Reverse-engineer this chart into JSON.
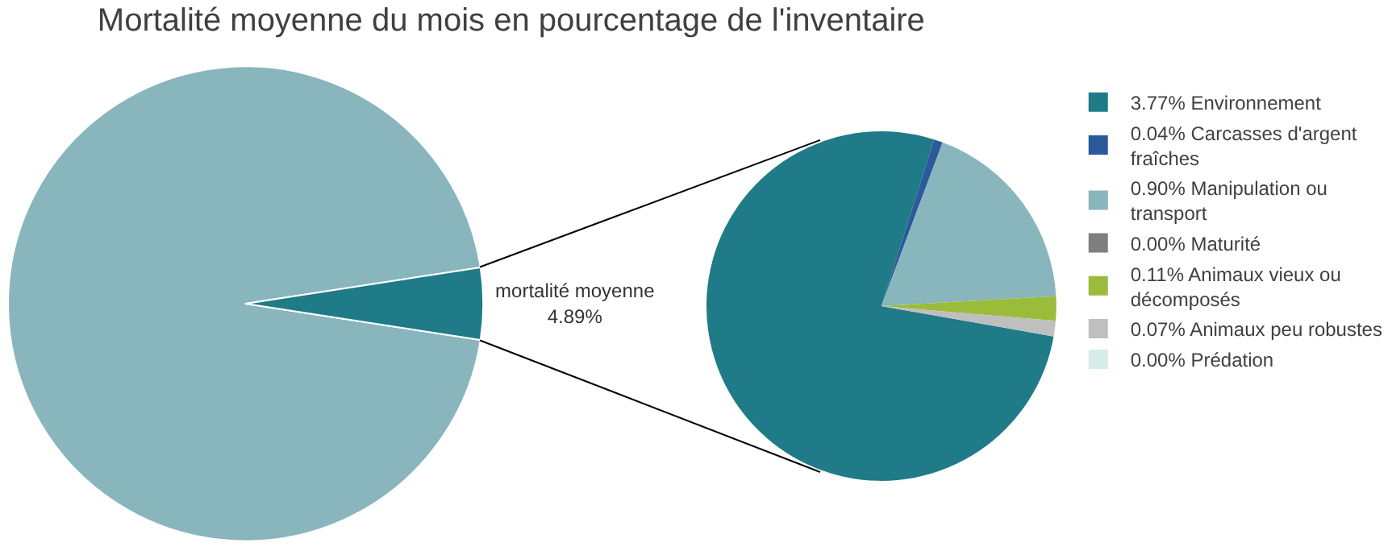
{
  "chart_data": [
    {
      "type": "pie",
      "title": "Mortalité moyenne du mois en pourcentage de l'inventaire",
      "categories": [
        null,
        "mortalité moyenne"
      ],
      "values": [
        95.11,
        4.89
      ],
      "colors": [
        "#89b5bd",
        "#1f7b87"
      ],
      "value_labels": [
        null,
        "4.89%"
      ],
      "legend": false
    },
    {
      "type": "pie",
      "categories": [
        "3.77% Environnement",
        "0.04% Carcasses d'argent\nfraîches",
        "0.90% Manipulation ou\ntransport",
        "0.00% Maturité",
        "0.11% Animaux vieux ou\ndécomposés",
        "0.07% Animaux peu robustes",
        "0.00% Prédation"
      ],
      "values": [
        3.77,
        0.04,
        0.9,
        0.0,
        0.11,
        0.07,
        0.0
      ],
      "colors": [
        "#1f7b87",
        "#2a5a9a",
        "#89b5bd",
        "#7f7f7f",
        "#9bbb3b",
        "#bfbfbf",
        "#d5ece8"
      ],
      "legend": "right"
    }
  ]
}
